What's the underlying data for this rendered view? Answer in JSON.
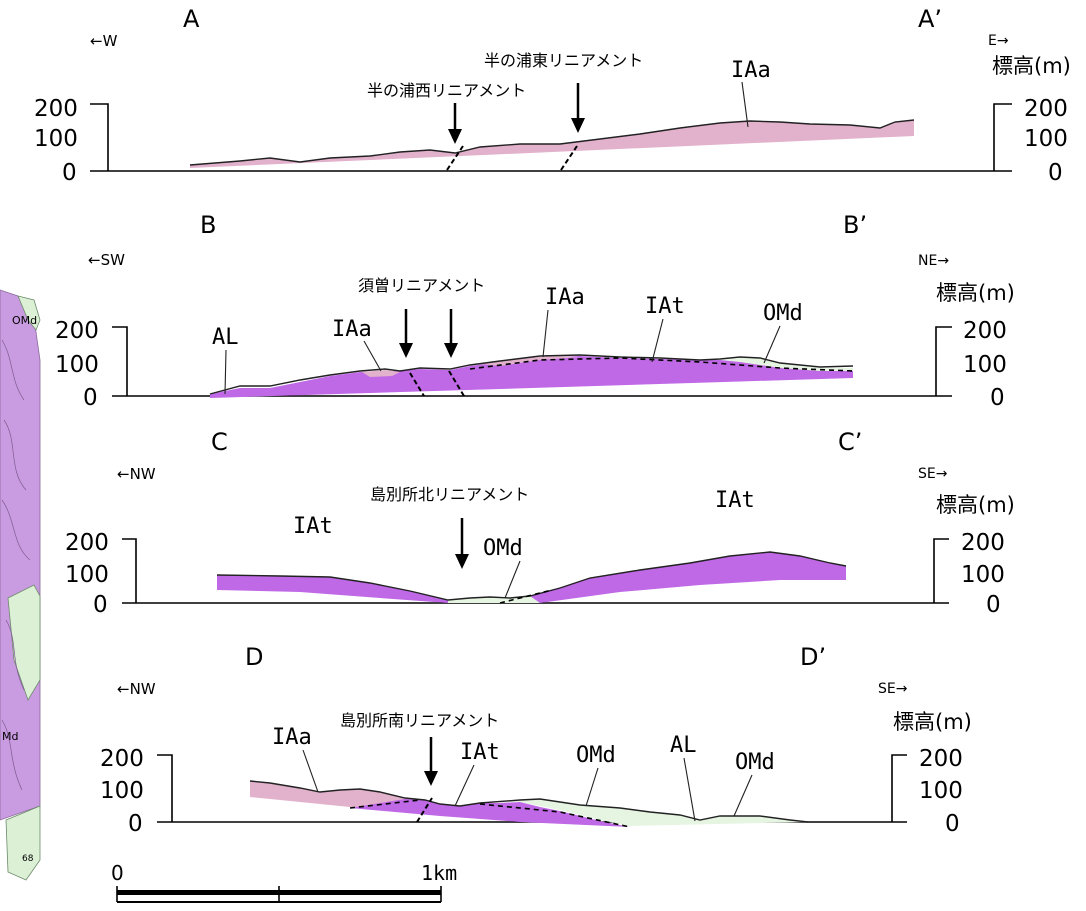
{
  "colors": {
    "IAa": "#e2b1cc",
    "IAt": "#bf69e6",
    "OMd": "#e6f5e2",
    "AL": "#ffffff",
    "map_purple": "#c99be0",
    "map_green": "#dcf0d6"
  },
  "map_strip": {
    "labels": {
      "omd": "OMd",
      "md": "Md",
      "num": "68"
    }
  },
  "units": {
    "elevation": "標高(m)"
  },
  "scale_bar": {
    "start": "0",
    "end": "1km"
  },
  "sections": [
    {
      "id": "A",
      "start_label": "A",
      "end_label": "A’",
      "dir_left": "←W",
      "dir_right": "E→",
      "ticks": [
        "200",
        "100",
        "0"
      ],
      "lineaments": [
        "半の浦西リニアメント",
        "半の浦東リニアメント"
      ],
      "units": [
        "IAa"
      ]
    },
    {
      "id": "B",
      "start_label": "B",
      "end_label": "B’",
      "dir_left": "←SW",
      "dir_right": "NE→",
      "ticks": [
        "200",
        "100",
        "0"
      ],
      "lineaments": [
        "須曽リニアメント"
      ],
      "units": [
        "AL",
        "IAa",
        "IAa",
        "IAt",
        "OMd"
      ]
    },
    {
      "id": "C",
      "start_label": "C",
      "end_label": "C’",
      "dir_left": "←NW",
      "dir_right": "SE→",
      "ticks": [
        "200",
        "100",
        "0"
      ],
      "lineaments": [
        "島別所北リニアメント"
      ],
      "units": [
        "IAt",
        "OMd",
        "IAt"
      ]
    },
    {
      "id": "D",
      "start_label": "D",
      "end_label": "D’",
      "dir_left": "←NW",
      "dir_right": "SE→",
      "ticks": [
        "200",
        "100",
        "0"
      ],
      "lineaments": [
        "島別所南リニアメント"
      ],
      "units": [
        "IAa",
        "IAt",
        "OMd",
        "AL",
        "OMd"
      ]
    }
  ]
}
